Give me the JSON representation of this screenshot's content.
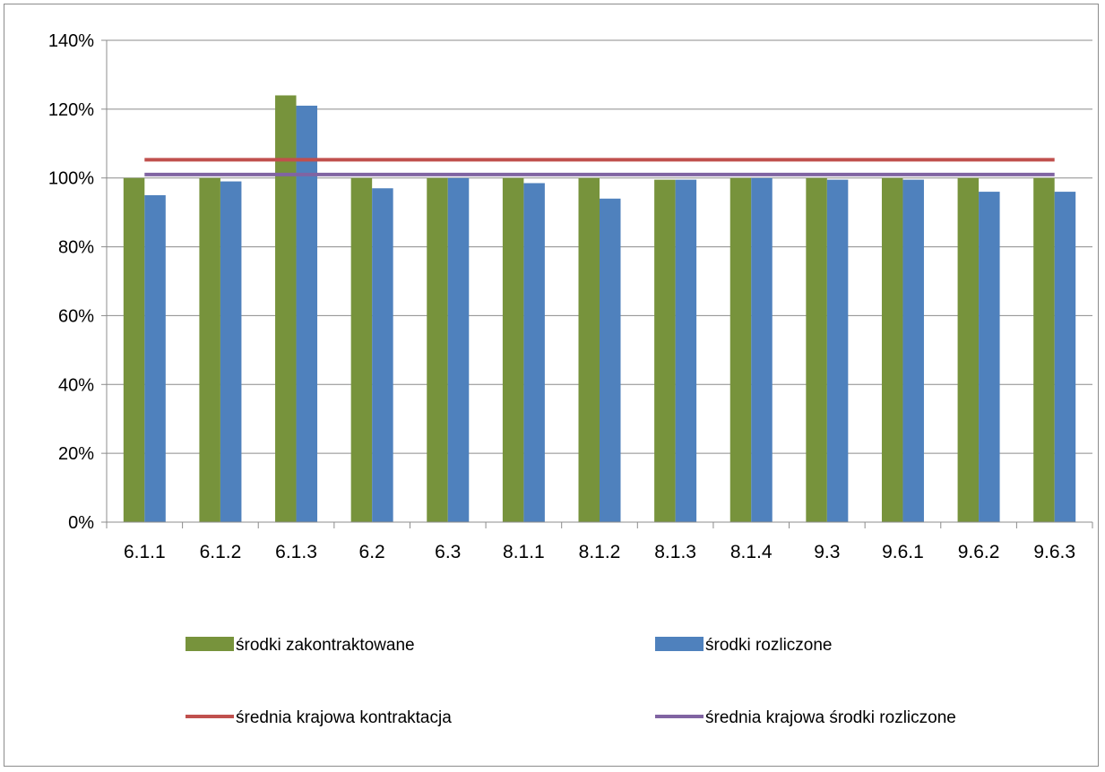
{
  "chart_data": {
    "type": "bar",
    "title": "",
    "xlabel": "",
    "ylabel": "",
    "categories": [
      "6.1.1",
      "6.1.2",
      "6.1.3",
      "6.2",
      "6.3",
      "8.1.1",
      "8.1.2",
      "8.1.3",
      "8.1.4",
      "9.3",
      "9.6.1",
      "9.6.2",
      "9.6.3"
    ],
    "series": [
      {
        "name": "środki zakontraktowane",
        "kind": "bar",
        "color": "#77933c",
        "values": [
          100,
          100,
          124,
          100,
          100,
          100,
          100,
          99.5,
          100,
          100,
          100,
          100,
          100
        ]
      },
      {
        "name": "środki rozliczone",
        "kind": "bar",
        "color": "#4f81bd",
        "values": [
          95,
          99,
          121,
          97,
          100,
          98.5,
          94,
          99.5,
          100,
          99.5,
          99.5,
          96,
          96
        ]
      },
      {
        "name": "średnia krajowa kontraktacja",
        "kind": "line",
        "color": "#c0504d",
        "values": [
          105.3,
          105.3,
          105.3,
          105.3,
          105.3,
          105.3,
          105.3,
          105.3,
          105.3,
          105.3,
          105.3,
          105.3,
          105.3
        ]
      },
      {
        "name": "średnia krajowa środki rozliczone",
        "kind": "line",
        "color": "#8064a2",
        "values": [
          101,
          101,
          101,
          101,
          101,
          101,
          101,
          101,
          101,
          101,
          101,
          101,
          101
        ]
      }
    ],
    "ylim": [
      0,
      140
    ],
    "yticks": [
      "0%",
      "20%",
      "40%",
      "60%",
      "80%",
      "100%",
      "120%",
      "140%"
    ],
    "grid": true,
    "legend_position": "bottom"
  }
}
